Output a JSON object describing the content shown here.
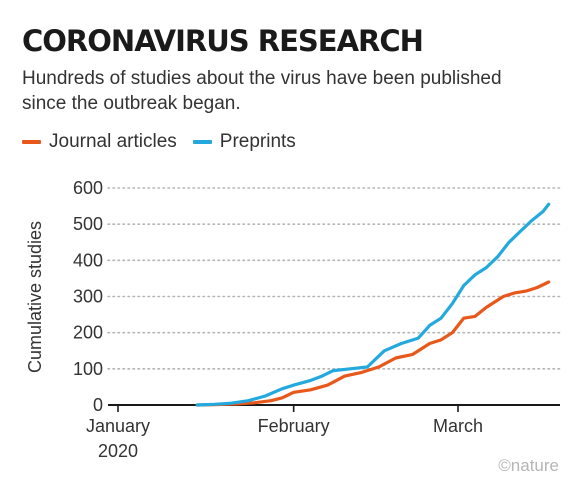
{
  "header": {
    "title": "CORONAVIRUS RESEARCH",
    "subtitle": "Hundreds of studies about the virus have been published since the outbreak began."
  },
  "credit": "©nature",
  "colors": {
    "journal": "#e8581b",
    "preprint": "#23a9dd",
    "axis": "#1a1a1a",
    "grid": "#b5b5b5"
  },
  "chart_data": {
    "type": "line",
    "ylabel": "Cumulative studies",
    "ylim": [
      0,
      600
    ],
    "yticks": [
      "0",
      "100",
      "200",
      "300",
      "400",
      "500",
      "600"
    ],
    "xlim": [
      "2020-01-01",
      "2020-03-19"
    ],
    "xticks": [
      {
        "date": "2020-01-01",
        "label": "January",
        "label2": "2020"
      },
      {
        "date": "2020-02-01",
        "label": "February",
        "label2": ""
      },
      {
        "date": "2020-03-01",
        "label": "March",
        "label2": ""
      }
    ],
    "grid": "horizontal-dotted",
    "legend": "top-left",
    "series": [
      {
        "name": "Journal articles",
        "color": "#e8581b",
        "points": [
          [
            "2020-01-15",
            0
          ],
          [
            "2020-01-18",
            1
          ],
          [
            "2020-01-22",
            3
          ],
          [
            "2020-01-25",
            6
          ],
          [
            "2020-01-28",
            12
          ],
          [
            "2020-01-30",
            20
          ],
          [
            "2020-02-01",
            35
          ],
          [
            "2020-02-04",
            42
          ],
          [
            "2020-02-07",
            55
          ],
          [
            "2020-02-10",
            80
          ],
          [
            "2020-02-13",
            90
          ],
          [
            "2020-02-16",
            105
          ],
          [
            "2020-02-19",
            130
          ],
          [
            "2020-02-22",
            140
          ],
          [
            "2020-02-25",
            170
          ],
          [
            "2020-02-27",
            180
          ],
          [
            "2020-02-29",
            200
          ],
          [
            "2020-03-02",
            240
          ],
          [
            "2020-03-04",
            245
          ],
          [
            "2020-03-06",
            270
          ],
          [
            "2020-03-09",
            300
          ],
          [
            "2020-03-11",
            310
          ],
          [
            "2020-03-13",
            315
          ],
          [
            "2020-03-15",
            325
          ],
          [
            "2020-03-17",
            340
          ]
        ]
      },
      {
        "name": "Preprints",
        "color": "#23a9dd",
        "points": [
          [
            "2020-01-15",
            0
          ],
          [
            "2020-01-18",
            2
          ],
          [
            "2020-01-21",
            5
          ],
          [
            "2020-01-24",
            12
          ],
          [
            "2020-01-27",
            25
          ],
          [
            "2020-01-30",
            45
          ],
          [
            "2020-02-01",
            55
          ],
          [
            "2020-02-04",
            68
          ],
          [
            "2020-02-06",
            80
          ],
          [
            "2020-02-08",
            95
          ],
          [
            "2020-02-11",
            100
          ],
          [
            "2020-02-14",
            105
          ],
          [
            "2020-02-17",
            150
          ],
          [
            "2020-02-20",
            170
          ],
          [
            "2020-02-23",
            185
          ],
          [
            "2020-02-25",
            220
          ],
          [
            "2020-02-27",
            240
          ],
          [
            "2020-02-29",
            280
          ],
          [
            "2020-03-02",
            330
          ],
          [
            "2020-03-04",
            360
          ],
          [
            "2020-03-06",
            380
          ],
          [
            "2020-03-08",
            410
          ],
          [
            "2020-03-10",
            450
          ],
          [
            "2020-03-12",
            480
          ],
          [
            "2020-03-14",
            510
          ],
          [
            "2020-03-16",
            535
          ],
          [
            "2020-03-17",
            555
          ]
        ]
      }
    ]
  }
}
